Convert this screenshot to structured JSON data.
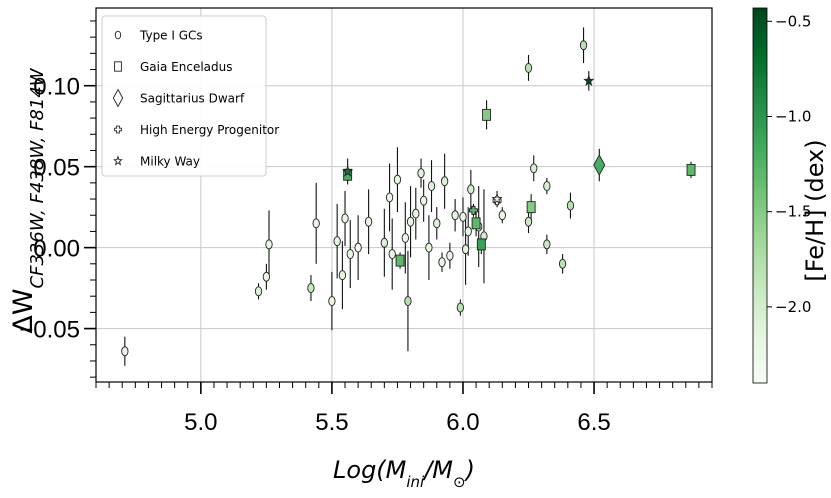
{
  "chart_data": {
    "type": "scatter",
    "xlabel": "Log(M_ini/M_⊙)",
    "ylabel": "ΔW_CF336W, F438W, F814W",
    "xlim": [
      4.6,
      6.95
    ],
    "ylim": [
      -0.083,
      0.148
    ],
    "x_ticks": [
      5.0,
      5.5,
      6.0,
      6.5
    ],
    "x_tick_labels": [
      "5.0",
      "5.5",
      "6.0",
      "6.5"
    ],
    "y_ticks": [
      -0.05,
      0.0,
      0.05,
      0.1
    ],
    "y_tick_labels": [
      "−0.05",
      "0.00",
      "0.05",
      "0.10"
    ],
    "grid": true,
    "legend_position": "top-left",
    "legend": [
      {
        "marker": "circle",
        "label": "Type I GCs"
      },
      {
        "marker": "square",
        "label": "Gaia Enceladus"
      },
      {
        "marker": "diamond",
        "label": "Sagittarius Dwarf"
      },
      {
        "marker": "plus",
        "label": "High Energy Progenitor"
      },
      {
        "marker": "star",
        "label": "Milky Way"
      }
    ],
    "colorbar": {
      "label": "[Fe/H] (dex)",
      "range": [
        -2.4,
        -0.43
      ],
      "ticks": [
        -0.5,
        -1.0,
        -1.5,
        -2.0
      ],
      "tick_labels": [
        "−0.5",
        "−1.0",
        "−1.5",
        "−2.0"
      ],
      "colormap": [
        "#f7fcf5",
        "#e5f5e0",
        "#c7e9c0",
        "#a1d99b",
        "#74c476",
        "#41ab5d",
        "#238b45",
        "#006d2c",
        "#00441b"
      ]
    },
    "series": [
      {
        "name": "Type I GCs",
        "marker": "circle",
        "points": [
          {
            "x": 4.71,
            "y": -0.064,
            "err": 0.009,
            "feh": -2.2
          },
          {
            "x": 5.22,
            "y": -0.027,
            "err": 0.005,
            "feh": -2.1
          },
          {
            "x": 5.25,
            "y": -0.018,
            "err": 0.008,
            "feh": -2.2
          },
          {
            "x": 5.26,
            "y": 0.002,
            "err": 0.021,
            "feh": -2.2
          },
          {
            "x": 5.42,
            "y": -0.025,
            "err": 0.008,
            "feh": -1.9
          },
          {
            "x": 5.44,
            "y": 0.015,
            "err": 0.025,
            "feh": -2.2
          },
          {
            "x": 5.5,
            "y": -0.033,
            "err": 0.018,
            "feh": -2.2
          },
          {
            "x": 5.52,
            "y": 0.004,
            "err": 0.023,
            "feh": -2.2
          },
          {
            "x": 5.54,
            "y": -0.017,
            "err": 0.021,
            "feh": -2.2
          },
          {
            "x": 5.55,
            "y": 0.018,
            "err": 0.017,
            "feh": -2.2
          },
          {
            "x": 5.57,
            "y": -0.004,
            "err": 0.021,
            "feh": -2.2
          },
          {
            "x": 5.6,
            "y": 0.0,
            "err": 0.02,
            "feh": -2.3
          },
          {
            "x": 5.64,
            "y": 0.016,
            "err": 0.02,
            "feh": -2.2
          },
          {
            "x": 5.7,
            "y": 0.003,
            "err": 0.021,
            "feh": -2.1
          },
          {
            "x": 5.72,
            "y": 0.031,
            "err": 0.021,
            "feh": -2.2
          },
          {
            "x": 5.73,
            "y": -0.004,
            "err": 0.022,
            "feh": -2.2
          },
          {
            "x": 5.75,
            "y": 0.042,
            "err": 0.02,
            "feh": -2.2
          },
          {
            "x": 5.78,
            "y": 0.006,
            "err": 0.022,
            "feh": -2.2
          },
          {
            "x": 5.79,
            "y": -0.033,
            "err": 0.031,
            "feh": -1.8
          },
          {
            "x": 5.8,
            "y": 0.016,
            "err": 0.022,
            "feh": -2.2
          },
          {
            "x": 5.82,
            "y": 0.021,
            "err": 0.016,
            "feh": -2.2
          },
          {
            "x": 5.84,
            "y": 0.046,
            "err": 0.009,
            "feh": -2.1
          },
          {
            "x": 5.85,
            "y": 0.029,
            "err": 0.013,
            "feh": -2.2
          },
          {
            "x": 5.87,
            "y": 0.0,
            "err": 0.02,
            "feh": -2.2
          },
          {
            "x": 5.88,
            "y": 0.038,
            "err": 0.016,
            "feh": -2.1
          },
          {
            "x": 5.9,
            "y": 0.015,
            "err": 0.01,
            "feh": -2.1
          },
          {
            "x": 5.92,
            "y": -0.009,
            "err": 0.006,
            "feh": -2.2
          },
          {
            "x": 5.93,
            "y": 0.041,
            "err": 0.017,
            "feh": -2.1
          },
          {
            "x": 5.95,
            "y": -0.005,
            "err": 0.008,
            "feh": -2.2
          },
          {
            "x": 5.97,
            "y": 0.02,
            "err": 0.01,
            "feh": -2.2
          },
          {
            "x": 5.99,
            "y": -0.037,
            "err": 0.005,
            "feh": -1.8
          },
          {
            "x": 6.0,
            "y": 0.019,
            "err": 0.012,
            "feh": -2.2
          },
          {
            "x": 6.01,
            "y": -0.001,
            "err": 0.022,
            "feh": -2.1
          },
          {
            "x": 6.02,
            "y": 0.01,
            "err": 0.015,
            "feh": -2.2
          },
          {
            "x": 6.03,
            "y": 0.036,
            "err": 0.012,
            "feh": -2.0
          },
          {
            "x": 6.06,
            "y": 0.013,
            "err": 0.025,
            "feh": -2.1
          },
          {
            "x": 6.08,
            "y": 0.007,
            "err": 0.029,
            "feh": -2.0
          },
          {
            "x": 6.15,
            "y": 0.02,
            "err": 0.005,
            "feh": -2.2
          },
          {
            "x": 6.25,
            "y": 0.111,
            "err": 0.008,
            "feh": -1.8
          },
          {
            "x": 6.25,
            "y": 0.016,
            "err": 0.007,
            "feh": -1.9
          },
          {
            "x": 6.27,
            "y": 0.049,
            "err": 0.008,
            "feh": -2.0
          },
          {
            "x": 6.32,
            "y": 0.002,
            "err": 0.006,
            "feh": -1.9
          },
          {
            "x": 6.32,
            "y": 0.038,
            "err": 0.005,
            "feh": -2.0
          },
          {
            "x": 6.38,
            "y": -0.01,
            "err": 0.006,
            "feh": -1.8
          },
          {
            "x": 6.41,
            "y": 0.026,
            "err": 0.008,
            "feh": -1.8
          },
          {
            "x": 6.46,
            "y": 0.125,
            "err": 0.011,
            "feh": -1.8
          }
        ]
      },
      {
        "name": "Gaia Enceladus",
        "marker": "square",
        "points": [
          {
            "x": 5.56,
            "y": 0.045,
            "err": 0.004,
            "feh": -1.2
          },
          {
            "x": 5.76,
            "y": -0.008,
            "err": 0.005,
            "feh": -1.3
          },
          {
            "x": 6.05,
            "y": 0.015,
            "err": 0.008,
            "feh": -1.3
          },
          {
            "x": 6.07,
            "y": 0.002,
            "err": 0.006,
            "feh": -1.1
          },
          {
            "x": 6.09,
            "y": 0.082,
            "err": 0.009,
            "feh": -1.5
          },
          {
            "x": 6.26,
            "y": 0.025,
            "err": 0.008,
            "feh": -1.5
          },
          {
            "x": 6.87,
            "y": 0.048,
            "err": 0.005,
            "feh": -1.3
          }
        ]
      },
      {
        "name": "Sagittarius Dwarf",
        "marker": "diamond",
        "points": [
          {
            "x": 6.52,
            "y": 0.051,
            "err": 0.01,
            "feh": -1.2
          }
        ]
      },
      {
        "name": "High Energy Progenitor",
        "marker": "plus",
        "points": [
          {
            "x": 6.04,
            "y": 0.023,
            "err": 0.004,
            "feh": -1.3
          },
          {
            "x": 6.13,
            "y": 0.029,
            "err": 0.004,
            "feh": -2.2
          }
        ]
      },
      {
        "name": "Milky Way",
        "marker": "star",
        "points": [
          {
            "x": 5.56,
            "y": 0.047,
            "err": 0.008,
            "feh": -0.8
          },
          {
            "x": 6.13,
            "y": 0.03,
            "err": 0.005,
            "feh": -2.2
          },
          {
            "x": 6.48,
            "y": 0.103,
            "err": 0.006,
            "feh": -0.45
          }
        ]
      }
    ]
  }
}
